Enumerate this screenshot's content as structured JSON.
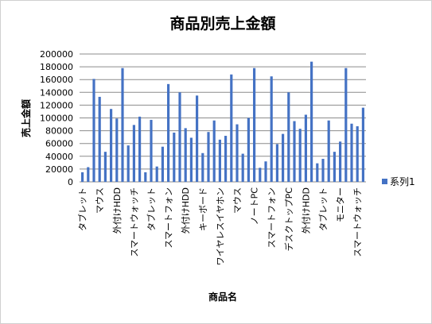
{
  "chart_data": {
    "type": "bar",
    "title": "商品別売上金額",
    "x_label": "商品名",
    "y_label": "売上金額",
    "categories": [
      "タブレット",
      null,
      null,
      "マウス",
      null,
      null,
      "外付けHDD",
      null,
      null,
      "スマートウォッチ",
      null,
      null,
      "タブレット",
      null,
      null,
      "スマートフォン",
      null,
      null,
      "外付けHDD",
      null,
      null,
      "キーボード",
      null,
      null,
      "ワイヤレスイヤホン",
      null,
      null,
      "マウス",
      null,
      null,
      "ノートPC",
      null,
      null,
      "スマートフォン",
      null,
      null,
      "デスクトップPC",
      null,
      null,
      "外付けHDD",
      null,
      null,
      "タブレット",
      null,
      null,
      "モニター",
      null,
      null,
      "スマートウォッチ",
      null
    ],
    "series": [
      {
        "name": "系列1",
        "color": "#4472c4",
        "values": [
          15000,
          23000,
          161000,
          133000,
          47000,
          114000,
          99000,
          178000,
          57000,
          89000,
          102000,
          15000,
          97000,
          24000,
          55000,
          153000,
          77000,
          140000,
          84000,
          69000,
          135000,
          45000,
          78000,
          96000,
          66000,
          72000,
          168000,
          90000,
          44000,
          100000,
          178000,
          22000,
          32000,
          165000,
          59000,
          75000,
          140000,
          95000,
          83000,
          105000,
          188000,
          29000,
          36000,
          96000,
          47000,
          63000,
          178000,
          91000,
          87000,
          116000
        ]
      }
    ],
    "ylim": [
      0,
      200000
    ],
    "yticks": [
      0,
      20000,
      40000,
      60000,
      80000,
      100000,
      120000,
      140000,
      160000,
      180000,
      200000
    ],
    "grid": true,
    "legend": "right"
  }
}
